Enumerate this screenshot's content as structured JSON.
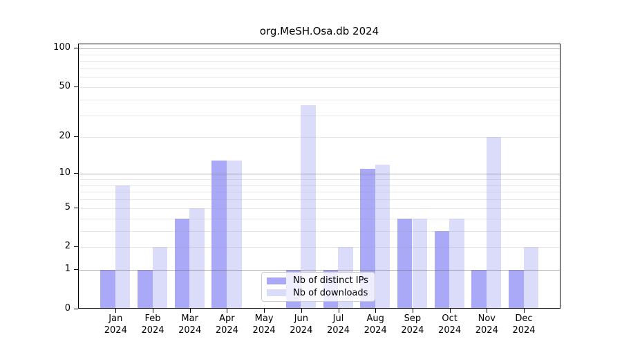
{
  "chart_data": {
    "type": "bar",
    "title": "org.MeSH.Osa.db 2024",
    "categories": [
      "Jan",
      "Feb",
      "Mar",
      "Apr",
      "May",
      "Jun",
      "Jul",
      "Aug",
      "Sep",
      "Oct",
      "Nov",
      "Dec"
    ],
    "year_label": "2024",
    "series": [
      {
        "name": "Nb of distinct IPs",
        "color": "#a9a9f8",
        "values": [
          1,
          1,
          4,
          13,
          0,
          1,
          1,
          11,
          4,
          3,
          1,
          1
        ]
      },
      {
        "name": "Nb of downloads",
        "color": "#dbdbfa",
        "values": [
          8,
          2,
          5,
          13,
          0,
          36,
          2,
          12,
          4,
          4,
          20,
          2
        ]
      }
    ],
    "y_axis": {
      "scale": "log1p",
      "ticks": [
        0,
        1,
        2,
        5,
        10,
        20,
        50,
        100
      ],
      "range": [
        0,
        107
      ]
    },
    "x_axis": {
      "tick_label_lines": 2
    },
    "grid": true,
    "legend_position": "lower center"
  }
}
